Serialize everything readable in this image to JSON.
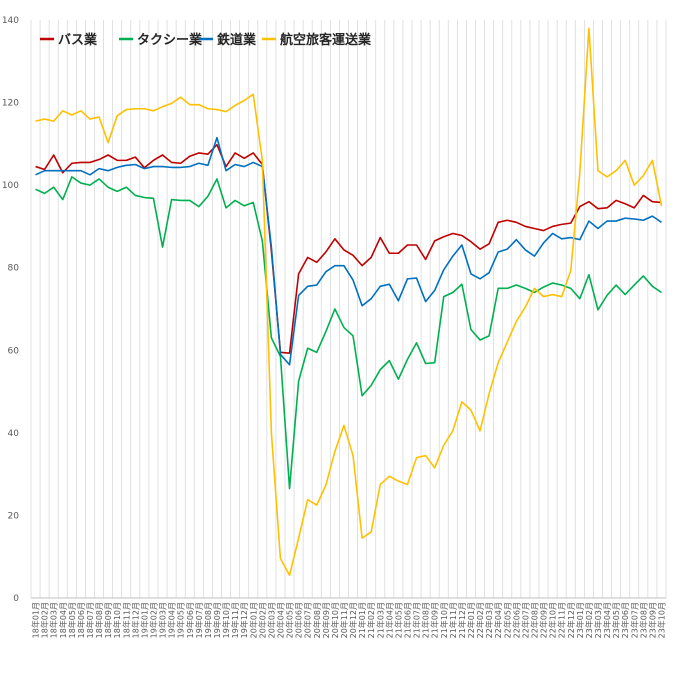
{
  "chart_data": {
    "type": "line",
    "title": "",
    "xlabel": "",
    "ylabel": "",
    "ylim": [
      0,
      140
    ],
    "yticks": [
      0,
      20,
      40,
      60,
      80,
      100,
      120,
      140
    ],
    "grid": "vertical",
    "legend_position": "top-left",
    "x": [
      "18年01月",
      "18年02月",
      "18年03月",
      "18年04月",
      "18年05月",
      "18年06月",
      "18年07月",
      "18年08月",
      "18年09月",
      "18年10月",
      "18年11月",
      "18年12月",
      "19年01月",
      "19年02月",
      "19年03月",
      "19年04月",
      "19年05月",
      "19年06月",
      "19年07月",
      "19年08月",
      "19年09月",
      "19年10月",
      "19年11月",
      "19年12月",
      "20年01月",
      "20年02月",
      "20年03月",
      "20年04月",
      "20年05月",
      "20年06月",
      "20年07月",
      "20年08月",
      "20年09月",
      "20年10月",
      "20年11月",
      "20年12月",
      "21年01月",
      "21年02月",
      "21年03月",
      "21年04月",
      "21年05月",
      "21年06月",
      "21年07月",
      "21年08月",
      "21年09月",
      "21年10月",
      "21年11月",
      "21年12月",
      "22年01月",
      "22年02月",
      "22年03月",
      "22年04月",
      "22年05月",
      "22年06月",
      "22年07月",
      "22年08月",
      "22年09月",
      "22年10月",
      "22年11月",
      "22年12月",
      "23年01月",
      "23年02月",
      "23年03月",
      "23年04月",
      "23年05月",
      "23年06月",
      "23年07月",
      "23年08月",
      "23年09月",
      "23年10月"
    ],
    "series": [
      {
        "name": "バス業",
        "color": "#c00000",
        "values": [
          104.5,
          103.8,
          107.3,
          103.0,
          105.3,
          105.5,
          105.5,
          106.2,
          107.3,
          106.0,
          106.0,
          106.8,
          104.2,
          106.0,
          107.3,
          105.5,
          105.3,
          107.0,
          107.8,
          107.5,
          109.8,
          104.5,
          107.8,
          106.5,
          107.8,
          105.0,
          84.0,
          59.5,
          59.3,
          78.5,
          82.5,
          81.3,
          83.8,
          87.0,
          84.3,
          83.0,
          80.5,
          82.5,
          87.3,
          83.5,
          83.5,
          85.5,
          85.5,
          82.0,
          86.5,
          87.5,
          88.3,
          87.8,
          86.3,
          84.5,
          85.8,
          91.0,
          91.5,
          91.0,
          90.0,
          89.5,
          89.0,
          90.0,
          90.5,
          90.8,
          94.8,
          96.0,
          94.3,
          94.5,
          96.3,
          95.5,
          94.5,
          97.5,
          96.0,
          95.8
        ]
      },
      {
        "name": "タクシー業",
        "color": "#00b050",
        "values": [
          99.0,
          98.0,
          99.5,
          96.5,
          102.0,
          100.5,
          100.0,
          101.5,
          99.5,
          98.5,
          99.5,
          97.5,
          97.0,
          96.8,
          85.0,
          96.5,
          96.3,
          96.3,
          94.8,
          97.3,
          101.5,
          94.5,
          96.3,
          95.0,
          95.8,
          86.5,
          63.0,
          58.5,
          26.5,
          52.5,
          60.5,
          59.5,
          64.5,
          70.0,
          65.5,
          63.5,
          49.0,
          51.5,
          55.3,
          57.5,
          53.0,
          57.8,
          61.8,
          56.8,
          57.0,
          73.0,
          74.0,
          76.0,
          65.0,
          62.5,
          63.5,
          75.0,
          75.0,
          75.8,
          75.0,
          74.0,
          75.3,
          76.3,
          75.8,
          75.0,
          72.5,
          78.3,
          69.8,
          73.3,
          75.8,
          73.5,
          75.8,
          78.0,
          75.5,
          74.0
        ]
      },
      {
        "name": "鉄道業",
        "color": "#0070c0",
        "values": [
          102.5,
          103.5,
          103.5,
          103.5,
          103.5,
          103.5,
          102.5,
          104.0,
          103.5,
          104.3,
          104.8,
          105.0,
          104.0,
          104.5,
          104.5,
          104.3,
          104.3,
          104.5,
          105.3,
          104.8,
          111.5,
          103.5,
          105.0,
          104.5,
          105.5,
          104.5,
          85.0,
          59.0,
          56.5,
          73.3,
          75.5,
          75.8,
          79.0,
          80.5,
          80.5,
          77.0,
          70.8,
          72.5,
          75.5,
          76.0,
          72.0,
          77.3,
          77.5,
          71.8,
          74.5,
          79.5,
          82.8,
          85.5,
          78.5,
          77.3,
          78.8,
          83.8,
          84.5,
          86.8,
          84.3,
          82.8,
          86.0,
          88.3,
          87.0,
          87.3,
          86.8,
          91.3,
          89.5,
          91.3,
          91.3,
          92.0,
          91.8,
          91.5,
          92.5,
          91.0
        ]
      },
      {
        "name": "航空旅客運送業",
        "color": "#ffc000",
        "values": [
          115.5,
          116.0,
          115.5,
          118.0,
          117.0,
          118.0,
          116.0,
          116.5,
          110.3,
          116.8,
          118.3,
          118.5,
          118.5,
          118.0,
          119.0,
          119.8,
          121.3,
          119.5,
          119.5,
          118.5,
          118.3,
          117.8,
          119.3,
          120.5,
          122.0,
          106.0,
          40.0,
          9.5,
          5.5,
          14.5,
          23.8,
          22.5,
          27.3,
          35.5,
          41.8,
          34.5,
          14.5,
          16.0,
          27.5,
          29.5,
          28.3,
          27.5,
          34.0,
          34.5,
          31.5,
          37.0,
          40.5,
          47.5,
          45.5,
          40.5,
          49.5,
          57.0,
          62.0,
          67.0,
          70.5,
          75.0,
          73.0,
          73.5,
          73.0,
          79.3,
          103.0,
          138.0,
          103.5,
          102.0,
          103.5,
          106.0,
          100.0,
          102.3,
          106.0,
          95.0
        ]
      }
    ]
  }
}
